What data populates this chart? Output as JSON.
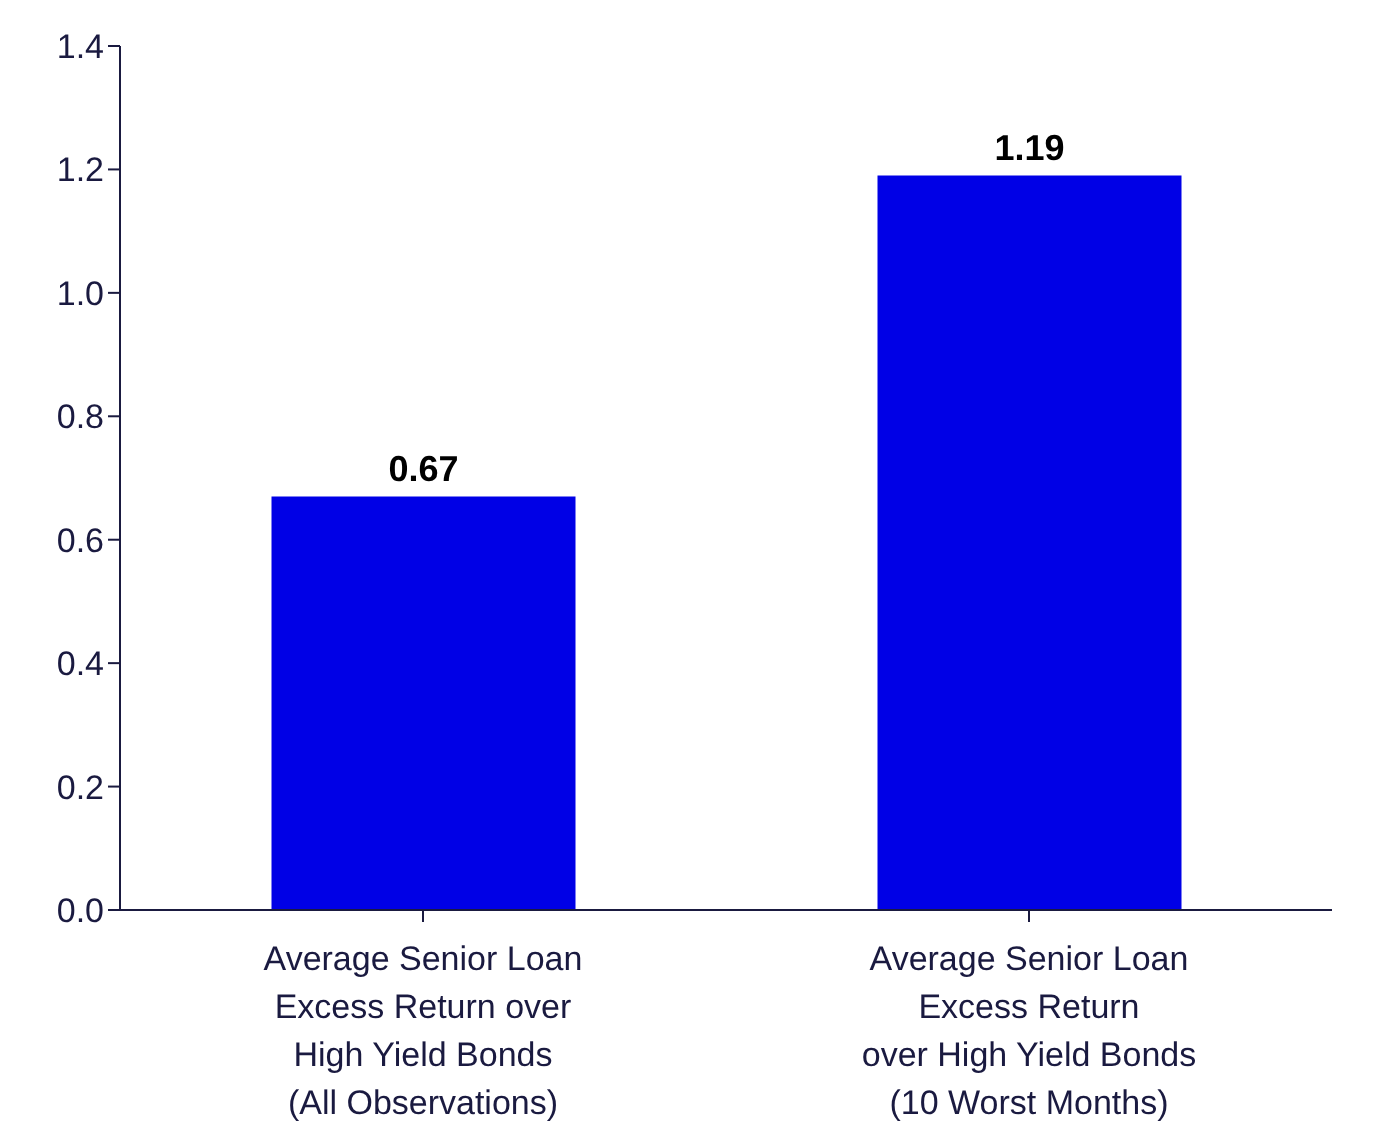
{
  "chart_data": {
    "type": "bar",
    "categories": [
      "Average Senior Loan\nExcess Return over\nHigh Yield Bonds\n(All Observations)",
      "Average Senior Loan\nExcess Return\nover High Yield Bonds\n(10 Worst Months)"
    ],
    "values": [
      0.67,
      1.19
    ],
    "color": "#0000e6",
    "ylim": [
      0,
      1.4
    ],
    "yticks": [
      {
        "value": 0,
        "label": "0.0"
      },
      {
        "value": 0.2,
        "label": "0.2"
      },
      {
        "value": 0.4,
        "label": "0.4"
      },
      {
        "value": 0.6,
        "label": "0.6"
      },
      {
        "value": 0.8,
        "label": "0.8"
      },
      {
        "value": 1,
        "label": "1.0"
      },
      {
        "value": 1.2,
        "label": "1.2"
      },
      {
        "value": 1.4,
        "label": "1.4"
      }
    ],
    "data_labels": true
  }
}
